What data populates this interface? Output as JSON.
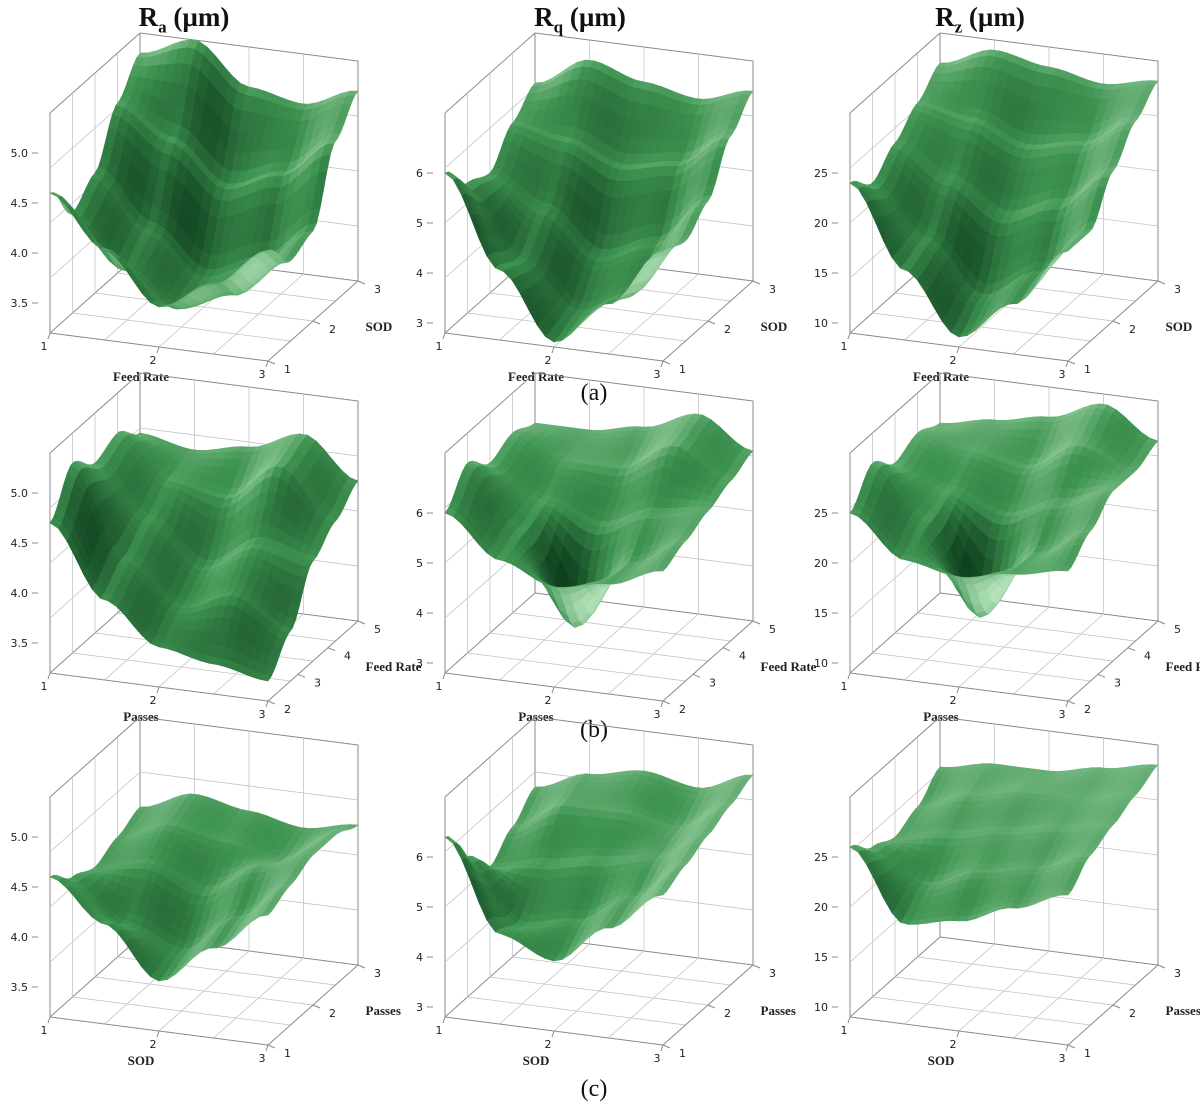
{
  "column_headers": [
    {
      "main": "R",
      "sub": "a",
      "unit": " (µm)"
    },
    {
      "main": "R",
      "sub": "q",
      "unit": " (µm)"
    },
    {
      "main": "R",
      "sub": "z",
      "unit": " (µm)"
    }
  ],
  "row_labels": [
    "(a)",
    "(b)",
    "(c)"
  ],
  "colors": {
    "surface_dark": "#0d3d1c",
    "surface_mid": "#3f9452",
    "surface_light": "#d4f7d6",
    "grid": "#bdbdbd",
    "box": "#8a8a8a"
  },
  "chart_data": [
    {
      "type": "surface",
      "row": "(a)",
      "response": "Ra (µm)",
      "xlabel": "Feed Rate",
      "ylabel": "SOD",
      "x_ticks": [
        "1",
        "2",
        "3"
      ],
      "y_ticks": [
        "1",
        "2",
        "3"
      ],
      "z_ticks": [
        "3.5",
        "4.0",
        "4.5",
        "5.0"
      ],
      "zlim": [
        3.2,
        5.4
      ],
      "z": [
        [
          4.6,
          4.1,
          3.6,
          3.9,
          4.3
        ],
        [
          4.2,
          3.7,
          3.4,
          3.6,
          4.0
        ],
        [
          4.4,
          3.9,
          3.5,
          3.7,
          4.1
        ],
        [
          4.9,
          4.6,
          4.2,
          4.4,
          4.8
        ],
        [
          5.2,
          5.4,
          5.0,
          4.9,
          5.1
        ]
      ]
    },
    {
      "type": "surface",
      "row": "(a)",
      "response": "Rq (µm)",
      "xlabel": "Feed Rate",
      "ylabel": "SOD",
      "x_ticks": [
        "1",
        "2",
        "3"
      ],
      "y_ticks": [
        "1",
        "2",
        "3"
      ],
      "z_ticks": [
        "3",
        "4",
        "5",
        "6"
      ],
      "zlim": [
        2.8,
        7.2
      ],
      "z": [
        [
          6.0,
          4.2,
          2.9,
          3.8,
          5.0
        ],
        [
          5.4,
          4.0,
          3.1,
          3.6,
          4.8
        ],
        [
          5.2,
          4.6,
          3.8,
          4.2,
          5.2
        ],
        [
          5.8,
          5.6,
          5.2,
          5.4,
          6.1
        ],
        [
          6.2,
          6.8,
          6.5,
          6.3,
          6.6
        ]
      ]
    },
    {
      "type": "surface",
      "row": "(a)",
      "response": "Rz (µm)",
      "xlabel": "Feed Rate",
      "ylabel": "SOD",
      "x_ticks": [
        "1",
        "2",
        "3"
      ],
      "y_ticks": [
        "1",
        "2",
        "3"
      ],
      "z_ticks": [
        "10",
        "15",
        "20",
        "25"
      ],
      "zlim": [
        9,
        31
      ],
      "z": [
        [
          24,
          16,
          10,
          14,
          20
        ],
        [
          22,
          17,
          12,
          15,
          20
        ],
        [
          24,
          21,
          18,
          20,
          24
        ],
        [
          26,
          25,
          23,
          24,
          27
        ],
        [
          28,
          30,
          29,
          28,
          29
        ]
      ]
    },
    {
      "type": "surface",
      "row": "(b)",
      "response": "Ra (µm)",
      "xlabel": "Passes",
      "ylabel": "Feed Rate",
      "x_ticks": [
        "1",
        "2",
        "3"
      ],
      "y_ticks": [
        "2",
        "3",
        "4",
        "5"
      ],
      "z_ticks": [
        "3.5",
        "4.0",
        "4.5",
        "5.0"
      ],
      "zlim": [
        3.2,
        5.4
      ],
      "z": [
        [
          4.7,
          4.0,
          3.6,
          3.5,
          3.4
        ],
        [
          5.1,
          4.2,
          3.8,
          4.0,
          3.7
        ],
        [
          4.9,
          4.4,
          4.0,
          4.3,
          4.2
        ],
        [
          5.0,
          4.6,
          4.5,
          4.9,
          4.4
        ],
        [
          4.8,
          4.7,
          4.8,
          5.0,
          4.6
        ]
      ]
    },
    {
      "type": "surface",
      "row": "(b)",
      "response": "Rq (µm)",
      "xlabel": "Passes",
      "ylabel": "Feed Rate",
      "x_ticks": [
        "1",
        "2",
        "3"
      ],
      "y_ticks": [
        "2",
        "3",
        "4",
        "5"
      ],
      "z_ticks": [
        "3",
        "4",
        "5",
        "6"
      ],
      "zlim": [
        2.8,
        7.2
      ],
      "z": [
        [
          6.0,
          5.2,
          4.8,
          5.0,
          5.4
        ],
        [
          6.6,
          5.4,
          3.6,
          5.0,
          5.6
        ],
        [
          6.2,
          5.6,
          5.2,
          5.6,
          5.8
        ],
        [
          6.4,
          6.0,
          6.0,
          6.6,
          6.0
        ],
        [
          6.2,
          6.2,
          6.4,
          6.8,
          6.2
        ]
      ]
    },
    {
      "type": "surface",
      "row": "(b)",
      "response": "Rz (µm)",
      "xlabel": "Passes",
      "ylabel": "Feed Rate",
      "x_ticks": [
        "1",
        "2",
        "3"
      ],
      "y_ticks": [
        "2",
        "3",
        "4",
        "5"
      ],
      "z_ticks": [
        "10",
        "15",
        "20",
        "25"
      ],
      "zlim": [
        9,
        31
      ],
      "z": [
        [
          25,
          21,
          20,
          21,
          22
        ],
        [
          28,
          23,
          14,
          21,
          24
        ],
        [
          26,
          24,
          22,
          24,
          26
        ],
        [
          27,
          26,
          25,
          28,
          26
        ],
        [
          26,
          27,
          28,
          30,
          27
        ]
      ]
    },
    {
      "type": "surface",
      "row": "(c)",
      "response": "Ra (µm)",
      "xlabel": "SOD",
      "ylabel": "Passes",
      "x_ticks": [
        "1",
        "2",
        "3"
      ],
      "y_ticks": [
        "1",
        "2",
        "3"
      ],
      "z_ticks": [
        "3.5",
        "4.0",
        "4.5",
        "5.0"
      ],
      "zlim": [
        3.2,
        5.4
      ],
      "z": [
        [
          4.6,
          4.2,
          3.7,
          4.1,
          4.5
        ],
        [
          4.4,
          4.0,
          3.8,
          4.2,
          4.6
        ],
        [
          4.3,
          4.4,
          4.2,
          4.5,
          4.7
        ],
        [
          4.4,
          4.6,
          4.5,
          4.4,
          4.7
        ],
        [
          4.5,
          4.7,
          4.6,
          4.5,
          4.6
        ]
      ]
    },
    {
      "type": "surface",
      "row": "(c)",
      "response": "Rq (µm)",
      "xlabel": "SOD",
      "ylabel": "Passes",
      "x_ticks": [
        "1",
        "2",
        "3"
      ],
      "y_ticks": [
        "1",
        "2",
        "3"
      ],
      "z_ticks": [
        "3",
        "4",
        "5",
        "6"
      ],
      "zlim": [
        2.8,
        7.2
      ],
      "z": [
        [
          6.4,
          4.6,
          4.2,
          5.0,
          5.8
        ],
        [
          5.6,
          4.4,
          4.6,
          5.2,
          6.0
        ],
        [
          5.0,
          5.2,
          5.4,
          5.6,
          6.2
        ],
        [
          5.4,
          6.0,
          6.0,
          5.8,
          6.4
        ],
        [
          5.8,
          6.2,
          6.4,
          6.2,
          6.6
        ]
      ]
    },
    {
      "type": "surface",
      "row": "(c)",
      "response": "Rz (µm)",
      "xlabel": "SOD",
      "ylabel": "Passes",
      "x_ticks": [
        "1",
        "2",
        "3"
      ],
      "y_ticks": [
        "1",
        "2",
        "3"
      ],
      "z_ticks": [
        "10",
        "15",
        "20",
        "25"
      ],
      "zlim": [
        9,
        31
      ],
      "z": [
        [
          26,
          19,
          20,
          22,
          24
        ],
        [
          24,
          21,
          23,
          24,
          26
        ],
        [
          23,
          24,
          25,
          26,
          27
        ],
        [
          24,
          26,
          27,
          27,
          28
        ],
        [
          26,
          27,
          27,
          28,
          29
        ]
      ]
    }
  ]
}
